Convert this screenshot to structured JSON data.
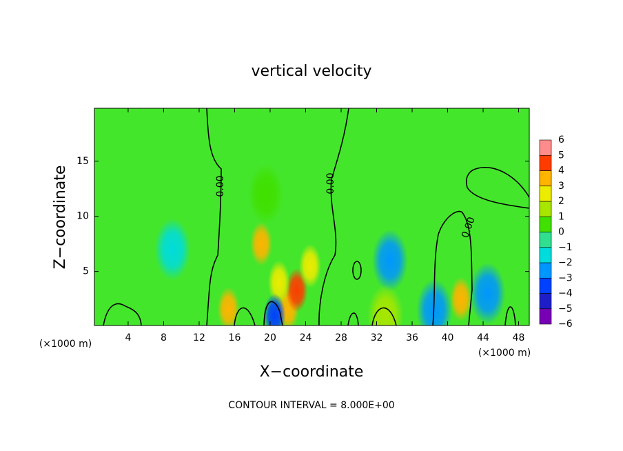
{
  "chart_data": {
    "type": "contour",
    "title": "vertical velocity",
    "x_label": "X−coordinate",
    "y_label": "Z−coordinate",
    "x_unit": "(×1000 m)",
    "y_unit": "(×1000 m)",
    "footer": "CONTOUR INTERVAL = 8.000E+00",
    "contour_label": "0.00",
    "xlim": [
      0.2,
      49.2
    ],
    "xticks": [
      4,
      8,
      12,
      16,
      20,
      24,
      28,
      32,
      36,
      40,
      44,
      48
    ],
    "ylim": [
      0.1,
      19.8
    ],
    "yticks": [
      5,
      10,
      15
    ],
    "field_color": "#44e62c",
    "levels": [
      {
        "value": -6,
        "label": "−6"
      },
      {
        "value": -5,
        "label": "−5"
      },
      {
        "value": -4,
        "label": "−4"
      },
      {
        "value": -3,
        "label": "−3"
      },
      {
        "value": -2,
        "label": "−2"
      },
      {
        "value": -1,
        "label": "−1"
      },
      0,
      1,
      2,
      3,
      4,
      5,
      6
    ],
    "colors": [
      "#7800b4",
      "#1e1ec8",
      "#0040ff",
      "#0096ff",
      "#00dcdc",
      "#30e090",
      "#40e000",
      "#a8e600",
      "#ecec00",
      "#ffb400",
      "#ff3c00",
      "#ff8c8c"
    ],
    "features": [
      {
        "x": 19,
        "z": 7.5,
        "value": 4
      },
      {
        "x": 15.3,
        "z": 1.6,
        "value": 4
      },
      {
        "x": 22,
        "z": 1.6,
        "value": 4
      },
      {
        "x": 23,
        "z": 3.3,
        "value": 5
      },
      {
        "x": 21,
        "z": 4,
        "value": 3
      },
      {
        "x": 24.5,
        "z": 5.5,
        "value": 3
      },
      {
        "x": 41.5,
        "z": 2.5,
        "value": 4
      },
      {
        "x": 20.5,
        "z": 1,
        "value": -3
      },
      {
        "x": 33.5,
        "z": 6,
        "value": -2
      },
      {
        "x": 44.5,
        "z": 3,
        "value": -2
      },
      {
        "x": 9,
        "z": 7,
        "value": -1
      },
      {
        "x": 19.5,
        "z": 12,
        "value": 1
      },
      {
        "x": 38.5,
        "z": 1.5,
        "value": -2
      },
      {
        "x": 33,
        "z": 1,
        "value": 2
      }
    ]
  }
}
